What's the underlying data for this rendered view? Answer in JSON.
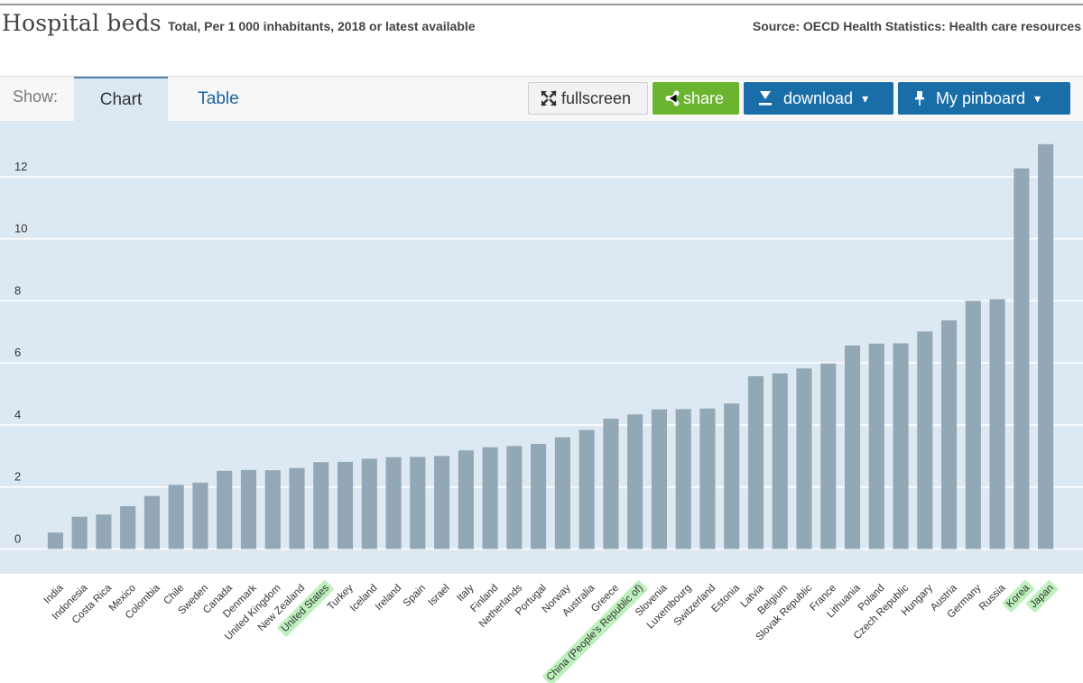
{
  "header": {
    "title": "Hospital beds",
    "subtitle": "Total, Per 1 000 inhabitants, 2018 or latest available",
    "source": "Source: OECD Health Statistics: Health care resources"
  },
  "toolbar": {
    "show_label": "Show:",
    "tabs": [
      {
        "label": "Chart",
        "active": true
      },
      {
        "label": "Table",
        "active": false
      }
    ],
    "fullscreen_label": "fullscreen",
    "share_label": "share",
    "download_label": "download",
    "pinboard_label": "My pinboard",
    "caret": "▾"
  },
  "colors": {
    "bar": "#93a8b6",
    "plot_bg": "#dde9f2",
    "highlight": "#bdf0bd",
    "share_green": "#6ab42f",
    "accent_blue": "#1a6ea8"
  },
  "chart_data": {
    "type": "bar",
    "title": "Hospital beds",
    "xlabel": "",
    "ylabel": "",
    "ylim": [
      -0.8,
      13.8
    ],
    "yticks": [
      0,
      2,
      4,
      6,
      8,
      10,
      12
    ],
    "grid": true,
    "categories": [
      "India",
      "Indonesia",
      "Costa Rica",
      "Mexico",
      "Colombia",
      "Chile",
      "Sweden",
      "Canada",
      "Denmark",
      "United Kingdom",
      "New Zealand",
      "United States",
      "Turkey",
      "Iceland",
      "Ireland",
      "Spain",
      "Israel",
      "Italy",
      "Finland",
      "Netherlands",
      "Portugal",
      "Norway",
      "Australia",
      "Greece",
      "China (People's Republic of)",
      "Slovenia",
      "Luxembourg",
      "Switzerland",
      "Estonia",
      "Latvia",
      "Belgium",
      "Slovak Republic",
      "France",
      "Lithuania",
      "Poland",
      "Czech Republic",
      "Hungary",
      "Austria",
      "Germany",
      "Russia",
      "Korea",
      "Japan"
    ],
    "values": [
      0.53,
      1.04,
      1.11,
      1.38,
      1.71,
      2.07,
      2.14,
      2.52,
      2.55,
      2.54,
      2.61,
      2.8,
      2.81,
      2.91,
      2.96,
      2.97,
      3.0,
      3.18,
      3.28,
      3.32,
      3.39,
      3.6,
      3.84,
      4.2,
      4.34,
      4.5,
      4.51,
      4.53,
      4.69,
      5.57,
      5.66,
      5.82,
      5.98,
      6.56,
      6.62,
      6.63,
      7.01,
      7.37,
      8.0,
      8.05,
      12.27,
      13.05
    ],
    "highlighted": [
      "United States",
      "China (People's Republic of)",
      "Korea",
      "Japan"
    ]
  }
}
